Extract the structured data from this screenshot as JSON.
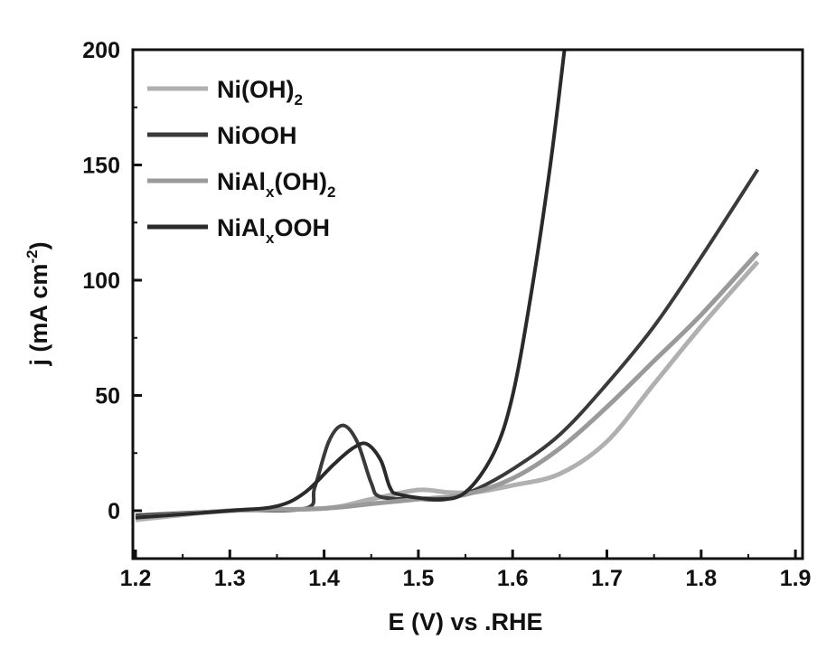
{
  "chart_data": {
    "type": "line",
    "title": "",
    "xlabel": "E (V) vs .RHE",
    "ylabel": "j (mA cm",
    "ylabel_sup": "-2",
    "ylabel_end": ")",
    "xlim": [
      1.2,
      1.9
    ],
    "ylim": [
      -20,
      200
    ],
    "xticks": [
      "1.2",
      "1.3",
      "1.4",
      "1.5",
      "1.6",
      "1.7",
      "1.8",
      "1.9"
    ],
    "yticks": [
      "0",
      "50",
      "100",
      "150",
      "200"
    ],
    "legend_position": "top-left",
    "series": [
      {
        "name": "Ni(OH)2",
        "label_main": "Ni(OH)",
        "label_sub": "2",
        "label_tail": "",
        "color": "#b0b0b0",
        "x": [
          1.2,
          1.3,
          1.4,
          1.45,
          1.5,
          1.53,
          1.56,
          1.6,
          1.65,
          1.7,
          1.75,
          1.8,
          1.86
        ],
        "y": [
          -4,
          0,
          1,
          5,
          9,
          8,
          8,
          11,
          16,
          30,
          55,
          80,
          108
        ]
      },
      {
        "name": "NiOOH",
        "label_main": "NiOOH",
        "label_sub": "",
        "label_tail": "",
        "color": "#3a3a3a",
        "x": [
          1.2,
          1.3,
          1.38,
          1.39,
          1.405,
          1.42,
          1.435,
          1.45,
          1.46,
          1.5,
          1.53,
          1.56,
          1.6,
          1.65,
          1.7,
          1.75,
          1.8,
          1.86
        ],
        "y": [
          -2,
          0,
          1,
          10,
          30,
          37,
          30,
          12,
          6,
          5,
          5,
          9,
          18,
          33,
          55,
          80,
          110,
          148
        ]
      },
      {
        "name": "NiAlx(OH)2",
        "label_main": "NiAl",
        "label_sub": "x",
        "label_tail": "(OH)",
        "label_sub2": "2",
        "color": "#9a9a9a",
        "x": [
          1.2,
          1.3,
          1.4,
          1.45,
          1.5,
          1.55,
          1.6,
          1.65,
          1.7,
          1.75,
          1.8,
          1.86
        ],
        "y": [
          -3,
          0,
          1,
          3,
          5,
          7,
          14,
          27,
          45,
          65,
          85,
          112
        ]
      },
      {
        "name": "NiAlxOOH",
        "label_main": "NiAl",
        "label_sub": "x",
        "label_tail": "OOH",
        "color": "#2a2a2a",
        "x": [
          1.2,
          1.3,
          1.35,
          1.38,
          1.41,
          1.43,
          1.445,
          1.46,
          1.47,
          1.48,
          1.52,
          1.55,
          1.58,
          1.6,
          1.62,
          1.64,
          1.655
        ],
        "y": [
          -3,
          0,
          2,
          8,
          20,
          27,
          29,
          22,
          10,
          7,
          5,
          8,
          25,
          50,
          95,
          150,
          200
        ]
      }
    ]
  }
}
